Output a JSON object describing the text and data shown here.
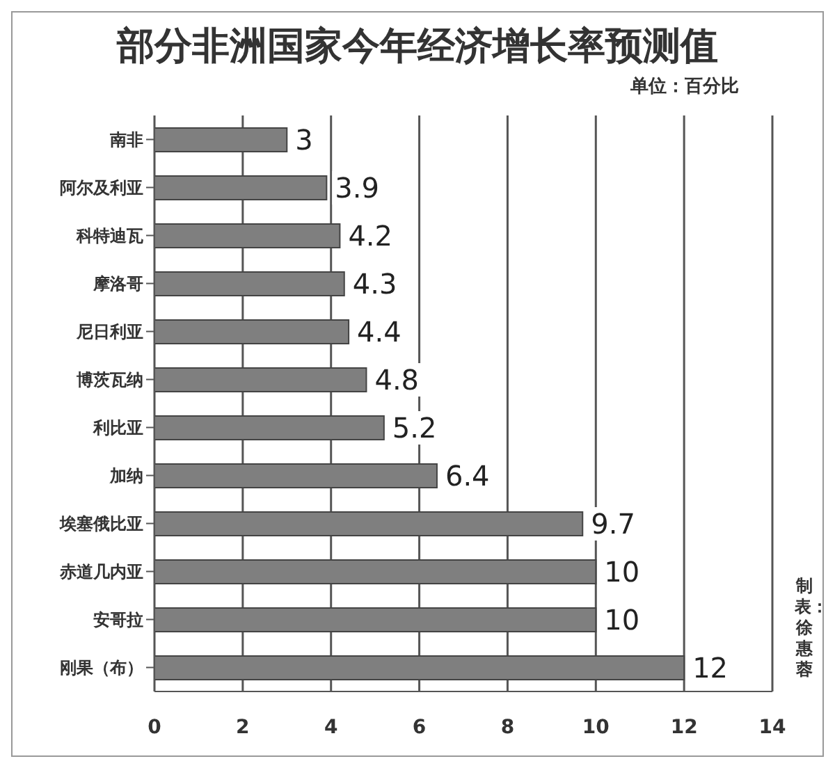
{
  "chart_data": {
    "type": "bar",
    "orientation": "horizontal",
    "title": "部分非洲国家今年经济增长率预测值",
    "subtitle": "单位：百分比",
    "categories": [
      "南非",
      "阿尔及利亚",
      "科特迪瓦",
      "摩洛哥",
      "尼日利亚",
      "博茨瓦纳",
      "利比亚",
      "加纳",
      "埃塞俄比亚",
      "赤道几内亚",
      "安哥拉",
      "刚果（布）"
    ],
    "values": [
      3,
      3.9,
      4.2,
      4.3,
      4.4,
      4.8,
      5.2,
      6.4,
      9.7,
      10,
      10,
      12
    ],
    "color": "#7f7f7f",
    "xlim": [
      0,
      14
    ],
    "xticks": [
      0,
      2,
      4,
      6,
      8,
      10,
      12,
      14
    ],
    "grid": "x",
    "data_labels": true,
    "legend": false,
    "annotations": [
      "制表：徐惠蓉"
    ]
  }
}
